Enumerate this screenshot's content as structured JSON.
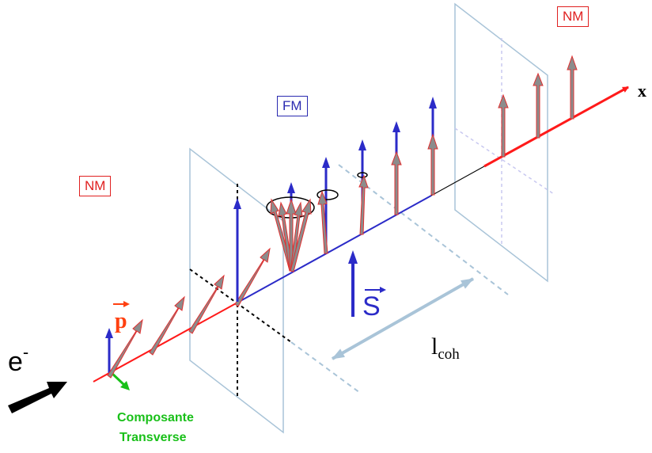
{
  "labels": {
    "nm_left": "NM",
    "nm_right": "NM",
    "fm": "FM",
    "axis_x": "x",
    "momentum": "p",
    "spin": "S",
    "electron_base": "e",
    "electron_sup": "-",
    "coherence_base": "l",
    "coherence_sub": "coh",
    "transverse_line1": "Composante",
    "transverse_line2": "Transverse"
  },
  "colors": {
    "axis": "#ff1a1a",
    "spin": "#2b2bc8",
    "spin_arrow_fill": "#8c8c8c",
    "spin_arrow_edge": "#e03030",
    "plane": "#a9c4d8",
    "transverse": "#19c019",
    "nm": "#e02020",
    "fm": "#2a2ab0"
  }
}
